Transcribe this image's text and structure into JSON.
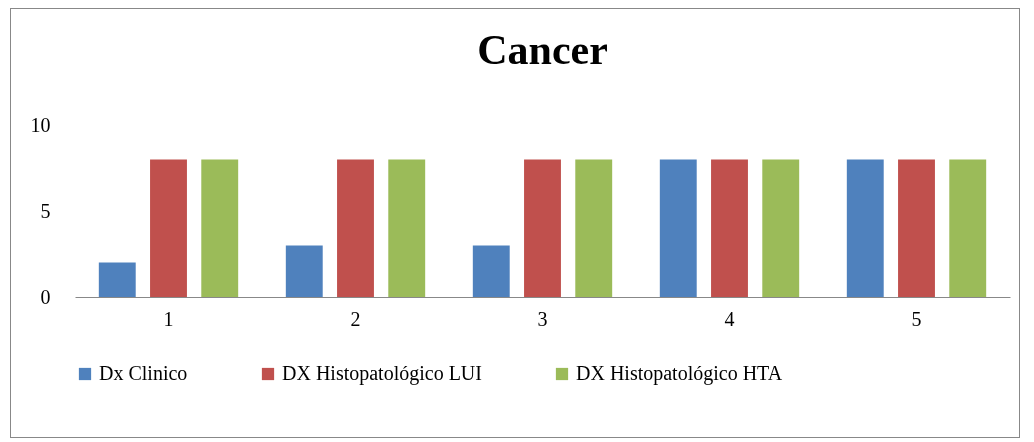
{
  "chart_data": {
    "type": "bar",
    "title": "Cancer",
    "categories": [
      "1",
      "2",
      "3",
      "4",
      "5"
    ],
    "series": [
      {
        "name": "Dx Clinico",
        "color": "#4f81bd",
        "values": [
          2,
          3,
          3,
          8,
          8
        ]
      },
      {
        "name": "DX Histopatológico LUI",
        "color": "#c0504d",
        "values": [
          8,
          8,
          8,
          8,
          8
        ]
      },
      {
        "name": "DX Histopatológico HTA",
        "color": "#9bbb59",
        "values": [
          8,
          8,
          8,
          8,
          8
        ]
      }
    ],
    "ylim": [
      0,
      10
    ],
    "yticks": [
      0,
      5,
      10
    ],
    "grid": false,
    "legend": "bottom"
  }
}
